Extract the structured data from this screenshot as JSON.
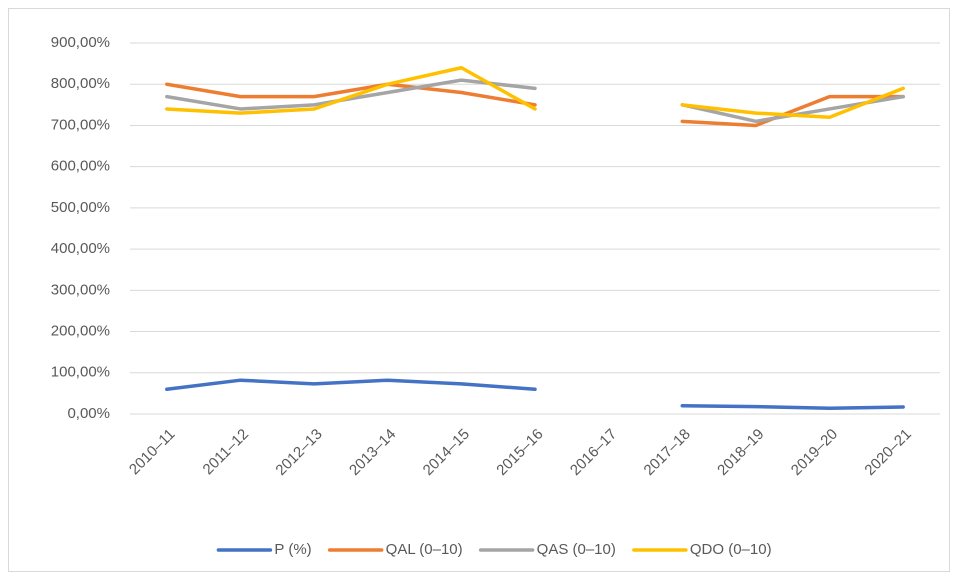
{
  "chart_data": {
    "type": "line",
    "categories": [
      "2010–11",
      "2011–12",
      "2012–13",
      "2013–14",
      "2014–15",
      "2015–16",
      "2016–17",
      "2017–18",
      "2018–19",
      "2019–20",
      "2020–21"
    ],
    "series": [
      {
        "name": "P (%)",
        "color": "#4472c4",
        "values": [
          60,
          82,
          73,
          82,
          73,
          60,
          null,
          20,
          18,
          14,
          17
        ]
      },
      {
        "name": "QAL (0–10)",
        "color": "#ed7d31",
        "values": [
          800,
          770,
          770,
          800,
          780,
          750,
          null,
          710,
          700,
          770,
          770
        ]
      },
      {
        "name": "QAS (0–10)",
        "color": "#a5a5a5",
        "values": [
          770,
          740,
          750,
          780,
          810,
          790,
          null,
          750,
          710,
          740,
          770
        ]
      },
      {
        "name": "QDO (0–10)",
        "color": "#ffc000",
        "values": [
          740,
          730,
          740,
          800,
          840,
          740,
          null,
          750,
          730,
          720,
          790
        ]
      }
    ],
    "ylim": [
      0,
      900
    ],
    "yticks": [
      {
        "value": 0,
        "label": "0,00%"
      },
      {
        "value": 100,
        "label": "100,00%"
      },
      {
        "value": 200,
        "label": "200,00%"
      },
      {
        "value": 300,
        "label": "300,00%"
      },
      {
        "value": 400,
        "label": "400,00%"
      },
      {
        "value": 500,
        "label": "500,00%"
      },
      {
        "value": 600,
        "label": "600,00%"
      },
      {
        "value": 700,
        "label": "700,00%"
      },
      {
        "value": 800,
        "label": "800,00%"
      },
      {
        "value": 900,
        "label": "900,00%"
      }
    ],
    "grid": true,
    "legend": "bottom"
  }
}
